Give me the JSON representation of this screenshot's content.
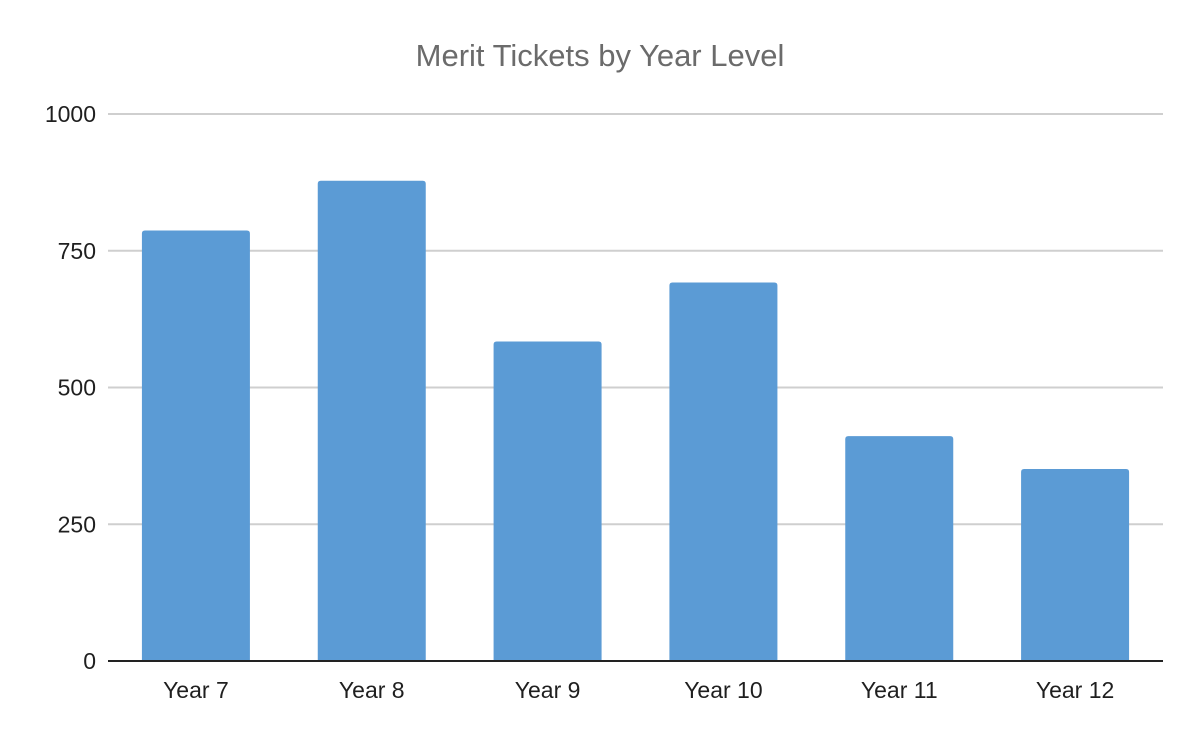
{
  "chart_data": {
    "type": "bar",
    "title": "Merit Tickets by Year Level",
    "xlabel": "",
    "ylabel": "",
    "categories": [
      "Year 7",
      "Year 8",
      "Year 9",
      "Year 10",
      "Year 11",
      "Year 12"
    ],
    "values": [
      787,
      878,
      584,
      692,
      411,
      351
    ],
    "ylim": [
      0,
      1000
    ],
    "yticks": [
      "0",
      "250",
      "500",
      "750",
      "1000"
    ],
    "grid": true,
    "legend": "none",
    "colors": {
      "bar": "#5b9bd5",
      "grid": "#cfcfcf",
      "axis": "#222222",
      "title": "#6b6b6b"
    }
  }
}
